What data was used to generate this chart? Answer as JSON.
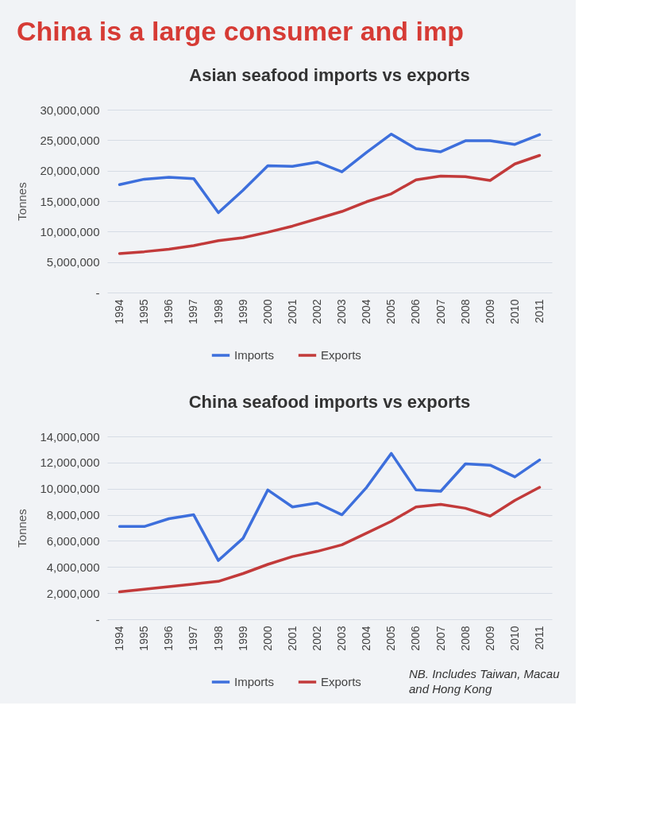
{
  "chart_data": [
    {
      "type": "line",
      "title": "Asian seafood imports vs exports",
      "ylabel": "Tonnes",
      "annotations": [
        "China is a large consumer and imp"
      ],
      "categories": [
        "1994",
        "1995",
        "1996",
        "1997",
        "1998",
        "1999",
        "2000",
        "2001",
        "2002",
        "2003",
        "2004",
        "2005",
        "2006",
        "2007",
        "2008",
        "2009",
        "2010",
        "2011"
      ],
      "series": [
        {
          "name": "Imports",
          "color": "#3d6fdc",
          "values": [
            17700000,
            18600000,
            18900000,
            18700000,
            13100000,
            16800000,
            20800000,
            20700000,
            21400000,
            19800000,
            23000000,
            26000000,
            23600000,
            23100000,
            24900000,
            24900000,
            24300000,
            25900000
          ]
        },
        {
          "name": "Exports",
          "color": "#c23a3a",
          "values": [
            6400000,
            6700000,
            7100000,
            7700000,
            8500000,
            9000000,
            9900000,
            10900000,
            12100000,
            13300000,
            14900000,
            16200000,
            18500000,
            19100000,
            19000000,
            18400000,
            21100000,
            22500000
          ]
        }
      ],
      "ylim": [
        0,
        30000000
      ],
      "yticks": [
        {
          "value": 0,
          "label": "-"
        },
        {
          "value": 5000000,
          "label": "5,000,000"
        },
        {
          "value": 10000000,
          "label": "10,000,000"
        },
        {
          "value": 15000000,
          "label": "15,000,000"
        },
        {
          "value": 20000000,
          "label": "20,000,000"
        },
        {
          "value": 25000000,
          "label": "25,000,000"
        },
        {
          "value": 30000000,
          "label": "30,000,000"
        }
      ],
      "grid": "y",
      "legend": "bottom",
      "line_style": "solid"
    },
    {
      "type": "line",
      "title": "China seafood imports vs exports",
      "ylabel": "Tonnes",
      "annotations": [
        "NB. Includes Taiwan, Macau and Hong Kong"
      ],
      "categories": [
        "1994",
        "1995",
        "1996",
        "1997",
        "1998",
        "1999",
        "2000",
        "2001",
        "2002",
        "2003",
        "2004",
        "2005",
        "2006",
        "2007",
        "2008",
        "2009",
        "2010",
        "2011"
      ],
      "series": [
        {
          "name": "Imports",
          "color": "#3d6fdc",
          "values": [
            7100000,
            7100000,
            7700000,
            8000000,
            4500000,
            6200000,
            9900000,
            8600000,
            8900000,
            8000000,
            10100000,
            12700000,
            9900000,
            9800000,
            11900000,
            11800000,
            10900000,
            12200000
          ]
        },
        {
          "name": "Exports",
          "color": "#c23a3a",
          "values": [
            2100000,
            2300000,
            2500000,
            2700000,
            2900000,
            3500000,
            4200000,
            4800000,
            5200000,
            5700000,
            6600000,
            7500000,
            8600000,
            8800000,
            8500000,
            7900000,
            9100000,
            10100000
          ]
        }
      ],
      "ylim": [
        0,
        14000000
      ],
      "yticks": [
        {
          "value": 0,
          "label": "-"
        },
        {
          "value": 2000000,
          "label": "2,000,000"
        },
        {
          "value": 4000000,
          "label": "4,000,000"
        },
        {
          "value": 6000000,
          "label": "6,000,000"
        },
        {
          "value": 8000000,
          "label": "8,000,000"
        },
        {
          "value": 10000000,
          "label": "10,000,000"
        },
        {
          "value": 12000000,
          "label": "12,000,000"
        },
        {
          "value": 14000000,
          "label": "14,000,000"
        }
      ],
      "grid": "y",
      "legend": "bottom",
      "line_style": "solid"
    }
  ]
}
